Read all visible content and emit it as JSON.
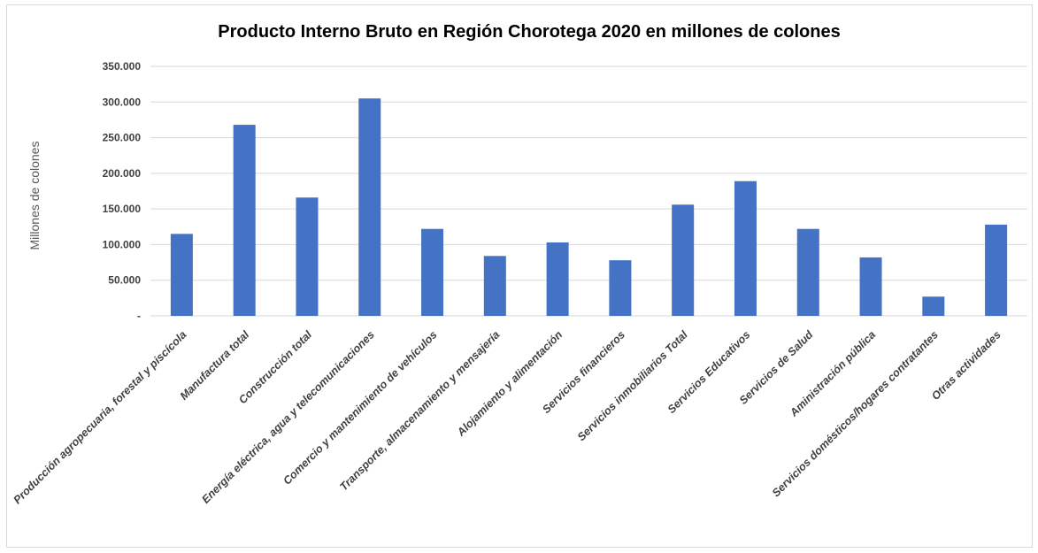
{
  "chart_data": {
    "type": "bar",
    "title": "Producto Interno Bruto en Región Chorotega 2020 en millones de colones",
    "ylabel": "Millones de colones",
    "xlabel": "",
    "ylim": [
      0,
      350000
    ],
    "yticks": [
      {
        "value": 0,
        "label": "-"
      },
      {
        "value": 50000,
        "label": "50.000"
      },
      {
        "value": 100000,
        "label": "100.000"
      },
      {
        "value": 150000,
        "label": "150.000"
      },
      {
        "value": 200000,
        "label": "200.000"
      },
      {
        "value": 250000,
        "label": "250.000"
      },
      {
        "value": 300000,
        "label": "300.000"
      },
      {
        "value": 350000,
        "label": "350.000"
      }
    ],
    "grid": true,
    "legend": "none",
    "bar_color": "#4472c4",
    "grid_color": "#d9d9d9",
    "categories": [
      "Producción agropecuaria, forestal y piscícola",
      "Manufactura total",
      "Construcción total",
      "Energía eléctrica, agua y telecomunicaciones",
      "Comercio y mantenimiento de vehículos",
      "Transporte, almacenamiento y mensajería",
      "Alojamiento y alimentación",
      "Servicios financieros",
      "Servicios inmobiliarios Total",
      "Servicios Educativos",
      "Servicios de Salud",
      "Aministración pública",
      "Servicios domésticos/hogares contratantes",
      "Otras actividades"
    ],
    "values": [
      115000,
      268000,
      166000,
      305000,
      122000,
      84000,
      103000,
      78000,
      156000,
      189000,
      122000,
      82000,
      27000,
      128000
    ]
  }
}
